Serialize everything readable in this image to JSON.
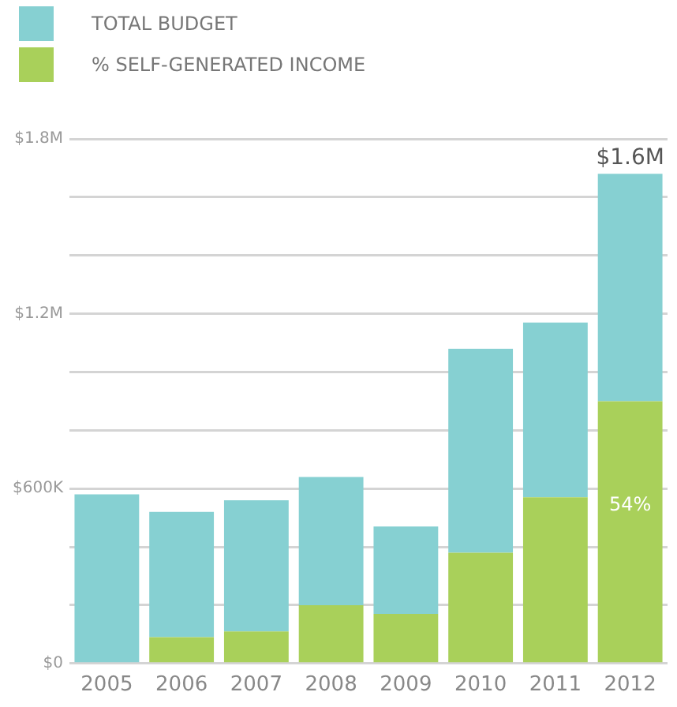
{
  "chart_data": {
    "type": "bar",
    "stacked": true,
    "categories": [
      "2005",
      "2006",
      "2007",
      "2008",
      "2009",
      "2010",
      "2011",
      "2012"
    ],
    "series": [
      {
        "name": "% SELF-GENERATED INCOME",
        "color": "#a9d05a",
        "values": [
          0,
          90000,
          110000,
          200000,
          170000,
          380000,
          570000,
          900000
        ]
      },
      {
        "name": "TOTAL BUDGET",
        "color": "#86d0d2",
        "values": [
          580000,
          430000,
          450000,
          440000,
          300000,
          700000,
          600000,
          780000
        ]
      }
    ],
    "annotations": [
      {
        "text": "$1.6M",
        "x": "2012",
        "y": 1680000
      },
      "54%"
    ],
    "ylim": [
      0,
      1800000
    ],
    "yticks": [
      {
        "value": 0,
        "label": "$0"
      },
      {
        "value": 200000,
        "label": null
      },
      {
        "value": 400000,
        "label": null
      },
      {
        "value": 600000,
        "label": "$600K"
      },
      {
        "value": 800000,
        "label": null
      },
      {
        "value": 1000000,
        "label": null
      },
      {
        "value": 1200000,
        "label": "$1.2M"
      },
      {
        "value": 1400000,
        "label": null
      },
      {
        "value": 1600000,
        "label": null
      },
      {
        "value": 1800000,
        "label": "$1.8M"
      }
    ],
    "grid": "y",
    "legend": "top left"
  }
}
